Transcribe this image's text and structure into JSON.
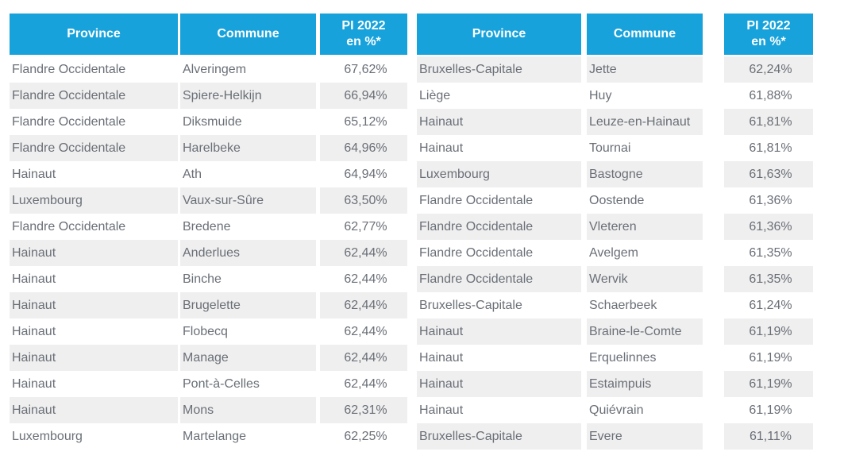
{
  "colors": {
    "header_bg": "#18A2DB",
    "header_text": "#FFFFFF",
    "row_alt_bg": "#EFEFEF",
    "row_bg": "#FFFFFF",
    "cell_text": "#6A6F77"
  },
  "header_labels": [
    "Province",
    "Commune",
    "PI 2022\nen %*"
  ],
  "chart_data": [
    {
      "type": "table",
      "columns": [
        "Province",
        "Commune",
        "PI 2022 en %*"
      ],
      "rows": [
        [
          "Flandre Occidentale",
          "Alveringem",
          "67,62%"
        ],
        [
          "Flandre Occidentale",
          "Spiere-Helkijn",
          "66,94%"
        ],
        [
          "Flandre Occidentale",
          "Diksmuide",
          "65,12%"
        ],
        [
          "Flandre Occidentale",
          "Harelbeke",
          "64,96%"
        ],
        [
          "Hainaut",
          "Ath",
          "64,94%"
        ],
        [
          "Luxembourg",
          "Vaux-sur-Sûre",
          "63,50%"
        ],
        [
          "Flandre Occidentale",
          "Bredene",
          "62,77%"
        ],
        [
          "Hainaut",
          "Anderlues",
          "62,44%"
        ],
        [
          "Hainaut",
          "Binche",
          "62,44%"
        ],
        [
          "Hainaut",
          "Brugelette",
          "62,44%"
        ],
        [
          "Hainaut",
          "Flobecq",
          "62,44%"
        ],
        [
          "Hainaut",
          "Manage",
          "62,44%"
        ],
        [
          "Hainaut",
          "Pont-à-Celles",
          "62,44%"
        ],
        [
          "Hainaut",
          "Mons",
          "62,31%"
        ],
        [
          "Luxembourg",
          "Martelange",
          "62,25%"
        ]
      ]
    },
    {
      "type": "table",
      "columns": [
        "Province",
        "Commune",
        "PI 2022 en %*"
      ],
      "rows": [
        [
          "Bruxelles-Capitale",
          "Jette",
          "62,24%"
        ],
        [
          "Liège",
          "Huy",
          "61,88%"
        ],
        [
          "Hainaut",
          "Leuze-en-Hainaut",
          "61,81%"
        ],
        [
          "Hainaut",
          "Tournai",
          "61,81%"
        ],
        [
          "Luxembourg",
          "Bastogne",
          "61,63%"
        ],
        [
          "Flandre Occidentale",
          "Oostende",
          "61,36%"
        ],
        [
          "Flandre Occidentale",
          "Vleteren",
          "61,36%"
        ],
        [
          "Flandre Occidentale",
          "Avelgem",
          "61,35%"
        ],
        [
          "Flandre Occidentale",
          "Wervik",
          "61,35%"
        ],
        [
          "Bruxelles-Capitale",
          "Schaerbeek",
          "61,24%"
        ],
        [
          "Hainaut",
          "Braine-le-Comte",
          "61,19%"
        ],
        [
          "Hainaut",
          "Erquelinnes",
          "61,19%"
        ],
        [
          "Hainaut",
          "Estaimpuis",
          "61,19%"
        ],
        [
          "Hainaut",
          "Quiévrain",
          "61,19%"
        ],
        [
          "Bruxelles-Capitale",
          "Evere",
          "61,11%"
        ]
      ]
    }
  ]
}
